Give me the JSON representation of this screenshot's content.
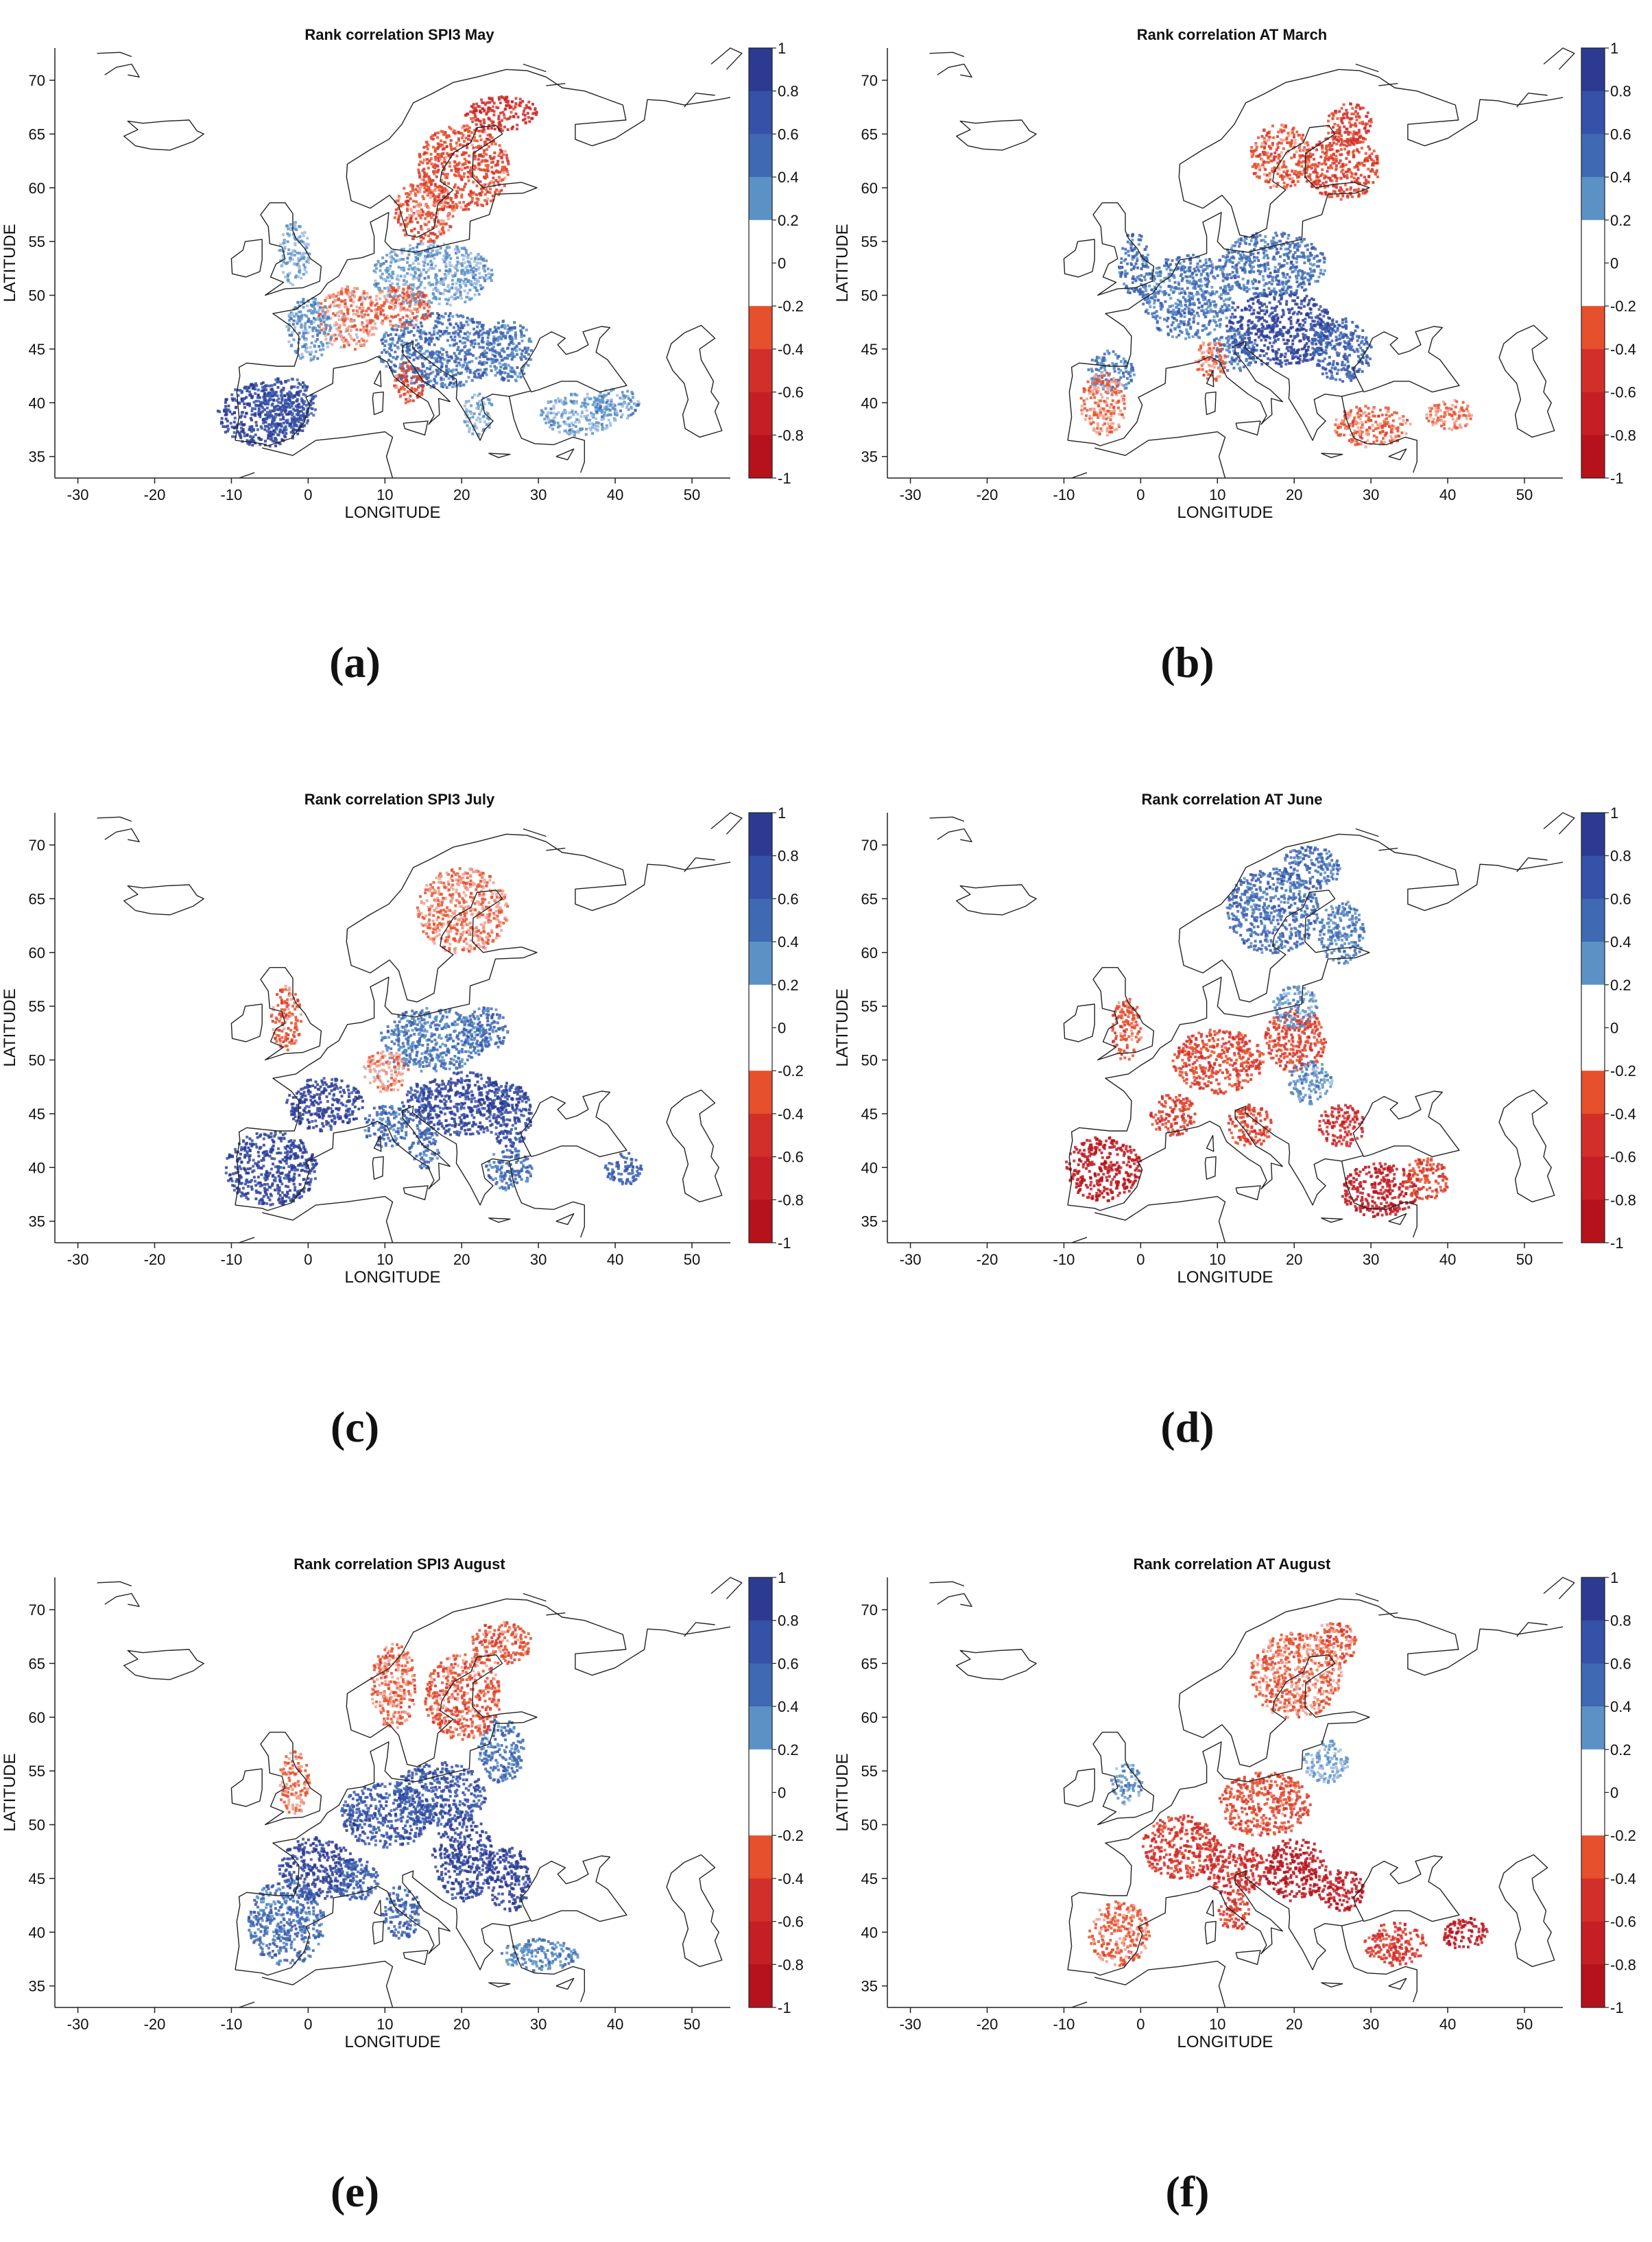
{
  "figure": {
    "panels": [
      {
        "letter": "(a)",
        "title": "Rank correlation SPI3 May",
        "blobs": [
          [
            -6,
            39,
            6,
            3,
            0.85
          ],
          [
            -3,
            40,
            4,
            2.5,
            0.7
          ],
          [
            17,
            45,
            8,
            3.5,
            0.5
          ],
          [
            26,
            45,
            3,
            3,
            0.45
          ],
          [
            16,
            52,
            8,
            3,
            0.25
          ],
          [
            5,
            48,
            4,
            3,
            -0.15
          ],
          [
            0,
            47,
            3,
            3,
            0.3
          ],
          [
            20,
            62,
            6,
            4,
            -0.35
          ],
          [
            15,
            58,
            4,
            3,
            -0.3
          ],
          [
            25,
            67,
            5,
            1.6,
            -0.55
          ],
          [
            12,
            49,
            4,
            2,
            -0.25
          ],
          [
            -2,
            54,
            2,
            3,
            0.2
          ],
          [
            13,
            42,
            2,
            2,
            -0.3
          ],
          [
            35,
            39,
            5,
            2,
            0.25
          ],
          [
            40,
            40,
            3,
            1.5,
            0.3
          ],
          [
            22,
            39,
            2,
            2,
            0.2
          ]
        ]
      },
      {
        "letter": "(b)",
        "title": "Rank correlation AT March",
        "blobs": [
          [
            18,
            47,
            7,
            3.5,
            0.85
          ],
          [
            26,
            45,
            4,
            3,
            0.6
          ],
          [
            6,
            50,
            6,
            4,
            0.45
          ],
          [
            17,
            53,
            7,
            3,
            0.5
          ],
          [
            -1,
            53,
            2,
            3,
            0.5
          ],
          [
            -4,
            43,
            3,
            2,
            0.4
          ],
          [
            12,
            45,
            3,
            2,
            0.5
          ],
          [
            26,
            62,
            5,
            3,
            -0.4
          ],
          [
            18,
            63,
            4,
            3,
            -0.3
          ],
          [
            27,
            66,
            3,
            2,
            -0.45
          ],
          [
            -5,
            40,
            3,
            3,
            -0.2
          ],
          [
            30,
            38,
            5,
            2,
            -0.25
          ],
          [
            40,
            39,
            3,
            1.5,
            -0.2
          ],
          [
            9,
            44,
            2,
            2,
            -0.25
          ]
        ]
      },
      {
        "letter": "(c)",
        "title": "Rank correlation SPI3 July",
        "blobs": [
          [
            -5,
            40,
            6,
            3.5,
            0.85
          ],
          [
            2,
            46,
            5,
            2.5,
            0.9
          ],
          [
            20,
            46,
            6,
            3,
            0.85
          ],
          [
            26,
            45,
            3,
            3,
            0.8
          ],
          [
            14,
            46,
            2,
            2,
            0.7
          ],
          [
            16,
            52,
            7,
            3,
            0.45
          ],
          [
            23,
            53,
            3,
            2,
            0.5
          ],
          [
            10,
            44,
            3,
            2,
            0.5
          ],
          [
            26,
            40,
            3,
            2,
            0.5
          ],
          [
            41,
            40,
            2.5,
            1.5,
            0.6
          ],
          [
            -3,
            54,
            2,
            3,
            -0.3
          ],
          [
            10,
            49,
            3,
            2,
            -0.15
          ],
          [
            20,
            64,
            6,
            4,
            -0.2
          ],
          [
            15,
            42,
            2,
            2,
            0.5
          ]
        ]
      },
      {
        "letter": "(d)",
        "title": "Rank correlation AT June",
        "blobs": [
          [
            -5,
            40,
            5,
            3,
            -0.85
          ],
          [
            31,
            38,
            5,
            2.5,
            -0.8
          ],
          [
            26,
            44,
            3,
            2,
            -0.6
          ],
          [
            10,
            50,
            6,
            3,
            -0.4
          ],
          [
            20,
            52,
            4,
            3,
            -0.4
          ],
          [
            4,
            45,
            3,
            2,
            -0.45
          ],
          [
            14,
            44,
            3,
            2,
            -0.4
          ],
          [
            -2,
            53,
            2,
            3,
            -0.3
          ],
          [
            17,
            64,
            6,
            4,
            0.5
          ],
          [
            22,
            68,
            4,
            2,
            0.5
          ],
          [
            26,
            62,
            3,
            3,
            0.4
          ],
          [
            20,
            55,
            3,
            2,
            0.3
          ],
          [
            22,
            48,
            3,
            2,
            0.3
          ],
          [
            37,
            39,
            3,
            2,
            -0.4
          ]
        ]
      },
      {
        "letter": "(e)",
        "title": "Rank correlation SPI3 August",
        "blobs": [
          [
            1,
            46,
            5,
            3,
            0.9
          ],
          [
            10,
            51,
            6,
            3,
            0.7
          ],
          [
            20,
            47,
            4,
            4,
            0.85
          ],
          [
            26,
            45,
            3,
            3,
            0.9
          ],
          [
            17,
            53,
            6,
            3,
            0.7
          ],
          [
            -3,
            41,
            5,
            4,
            0.5
          ],
          [
            6,
            45,
            3,
            2,
            0.6
          ],
          [
            25,
            57,
            3,
            3,
            0.5
          ],
          [
            12,
            42,
            2.5,
            2.5,
            0.55
          ],
          [
            30,
            38,
            5,
            1.5,
            0.4
          ],
          [
            20,
            62,
            5,
            4,
            -0.3
          ],
          [
            25,
            67,
            4,
            2,
            -0.3
          ],
          [
            -2,
            54,
            2,
            3,
            -0.2
          ],
          [
            11,
            63,
            3,
            4,
            -0.25
          ]
        ]
      },
      {
        "letter": "(f)",
        "title": "Rank correlation AT August",
        "blobs": [
          [
            20,
            46,
            4,
            3,
            -0.9
          ],
          [
            26,
            44,
            3,
            2,
            -0.85
          ],
          [
            5,
            48,
            5,
            3,
            -0.5
          ],
          [
            12,
            46,
            4,
            2.5,
            -0.55
          ],
          [
            42,
            40,
            3,
            1.5,
            -0.85
          ],
          [
            33,
            39,
            4,
            2,
            -0.5
          ],
          [
            16,
            52,
            6,
            3,
            -0.35
          ],
          [
            -3,
            40,
            4,
            3,
            -0.25
          ],
          [
            20,
            64,
            6,
            4,
            -0.25
          ],
          [
            25,
            67,
            3,
            2,
            -0.3
          ],
          [
            -2,
            54,
            2,
            2,
            0.3
          ],
          [
            24,
            56,
            3,
            2,
            0.2
          ],
          [
            12,
            42,
            2,
            2,
            -0.45
          ]
        ]
      }
    ],
    "axis": {
      "xlabel": "LONGITUDE",
      "ylabel": "LATITUDE",
      "xlim": [
        -33,
        55
      ],
      "ylim": [
        33,
        73
      ],
      "xticks": [
        -30,
        -20,
        -10,
        0,
        10,
        20,
        30,
        40,
        50
      ],
      "yticks": [
        35,
        40,
        45,
        50,
        55,
        60,
        65,
        70
      ]
    },
    "colorbar": {
      "ticks": [
        "1",
        "0.8",
        "0.6",
        "0.4",
        "0.2",
        "0",
        "-0.2",
        "-0.4",
        "-0.6",
        "-0.8",
        "-1"
      ],
      "colors": [
        "#2c3a92",
        "#3551a8",
        "#3f69b3",
        "#5b92c6",
        "#ffffff",
        "#ffffff",
        "#e6502c",
        "#d32f2a",
        "#c61e25",
        "#b5121c"
      ]
    }
  }
}
